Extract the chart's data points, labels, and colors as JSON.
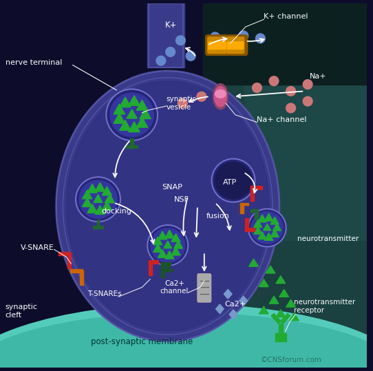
{
  "bg_dark_left": "#0d0d2b",
  "bg_teal_right": "#1a4a4a",
  "bg_teal_bottom": "#3abcaa",
  "nerve_fill": "#3a3a8a",
  "nerve_outline": "#6666bb",
  "nerve_inner": "#2a2a7a",
  "vesicle_fill": "#3535a0",
  "vesicle_outline": "#7070cc",
  "vesicle_dark": "#252580",
  "nt_green": "#22aa33",
  "k_channel_color": "#cc8800",
  "k_channel_light": "#ffaa00",
  "na_channel_color": "#cc5588",
  "ca_channel_color": "#cccccc",
  "k_ion": "#6688cc",
  "na_ion": "#cc7777",
  "ca_ion": "#5588aa",
  "snare_red": "#cc2222",
  "snare_orange": "#cc6600",
  "snare_green": "#226633",
  "snare_darkgreen": "#1a5528",
  "arrow_color": "#ffffff",
  "label_color": "#ffffff",
  "post_mem_color": "#55ccbb",
  "copyright_color": "#227766",
  "labels": {
    "nerve_terminal": "nerve terminal",
    "k_plus": "K+",
    "k_channel": "K+ channel",
    "na_plus": "Na+",
    "na_channel": "Na+ channel",
    "synaptic_vesicle": "synaptic\nvesicle",
    "snap": "SNAP",
    "nsf": "NSF",
    "atp": "ATP",
    "fusion": "fusion",
    "docking": "docking",
    "v_snare": "V-SNARE",
    "t_snares": "T-SNAREs",
    "ca_channel": "Ca2+\nchannel",
    "ca2plus": "Ca2+",
    "synaptic_cleft": "synaptic\ncleft",
    "post_synaptic": "post-synaptic membrane",
    "neurotransmitter": "neurotransmitter",
    "neurotransmitter_receptor": "neurotransmitter\nreceptor",
    "copyright": "©CNSforum.com"
  }
}
